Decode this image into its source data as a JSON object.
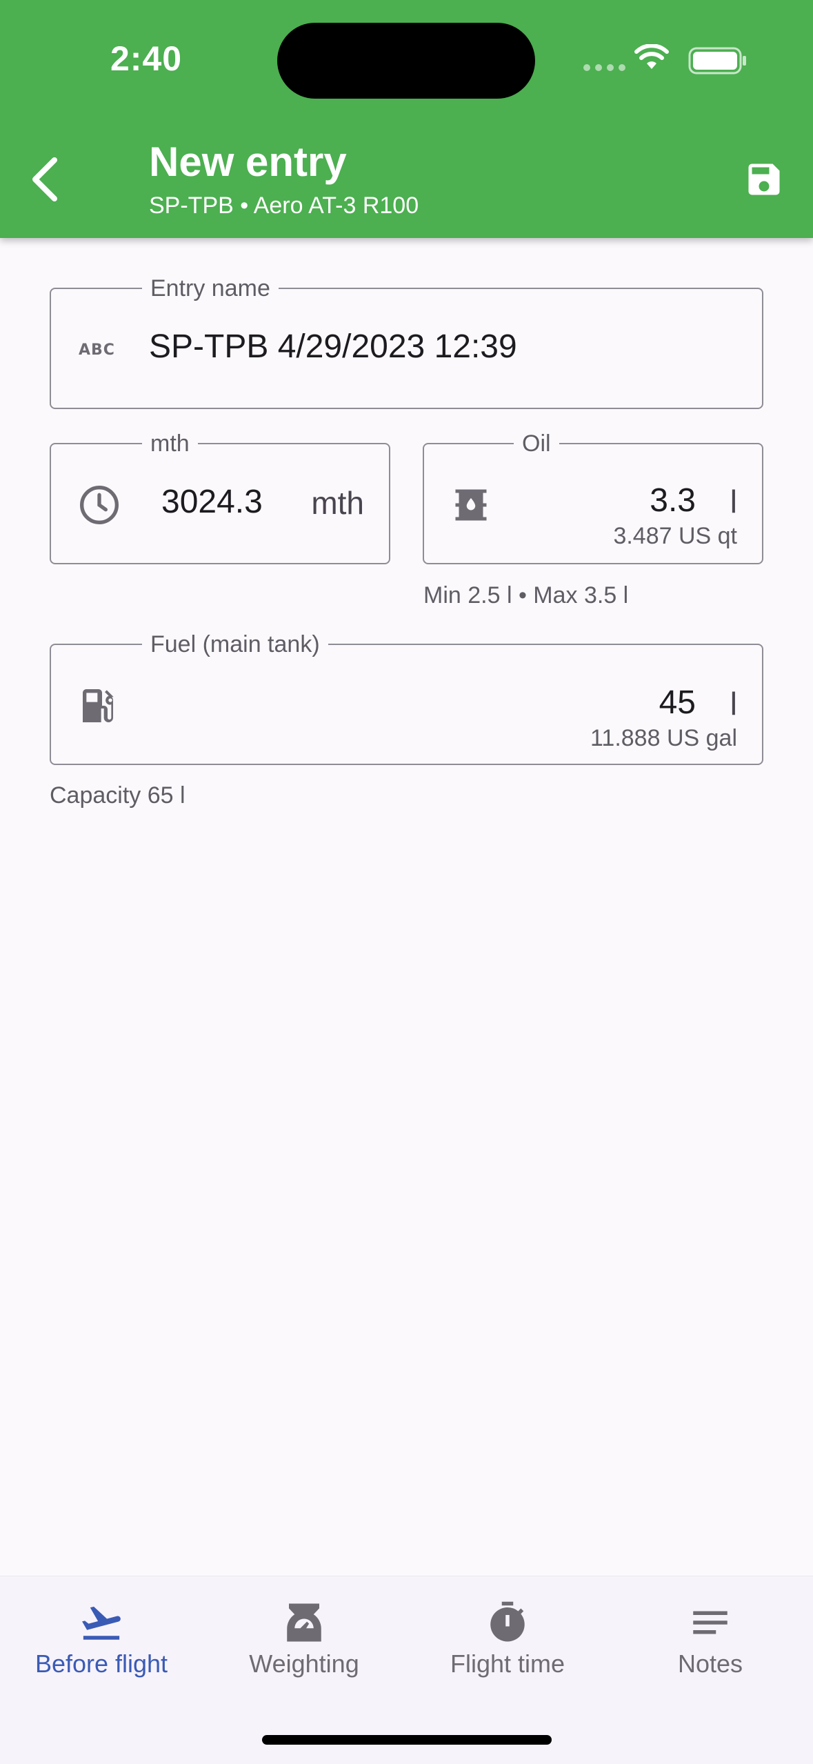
{
  "status_bar": {
    "time": "2:40"
  },
  "header": {
    "title": "New entry",
    "subtitle": "SP-TPB • Aero AT-3 R100"
  },
  "form": {
    "entry_name": {
      "label": "Entry name",
      "value": "SP-TPB 4/29/2023 12:39",
      "icon": "abc-icon"
    },
    "mth": {
      "label": "mth",
      "value": "3024.3",
      "unit": "mth",
      "icon": "clock-icon"
    },
    "oil": {
      "label": "Oil",
      "value": "3.3",
      "unit": "l",
      "secondary": "3.487 US qt",
      "helper": "Min 2.5 l • Max 3.5 l",
      "icon": "oil-barrel-icon"
    },
    "fuel": {
      "label": "Fuel (main tank)",
      "value": "45",
      "unit": "l",
      "secondary": "11.888 US gal",
      "helper": "Capacity 65 l",
      "icon": "fuel-pump-icon"
    }
  },
  "bottom_nav": {
    "items": [
      {
        "label": "Before flight",
        "icon": "takeoff-icon",
        "active": true
      },
      {
        "label": "Weighting",
        "icon": "scale-icon",
        "active": false
      },
      {
        "label": "Flight time",
        "icon": "stopwatch-icon",
        "active": false
      },
      {
        "label": "Notes",
        "icon": "notes-icon",
        "active": false
      }
    ]
  },
  "colors": {
    "appbar": "#4caf50",
    "active_nav": "#3a5bb5",
    "outline": "#8e8c94"
  }
}
